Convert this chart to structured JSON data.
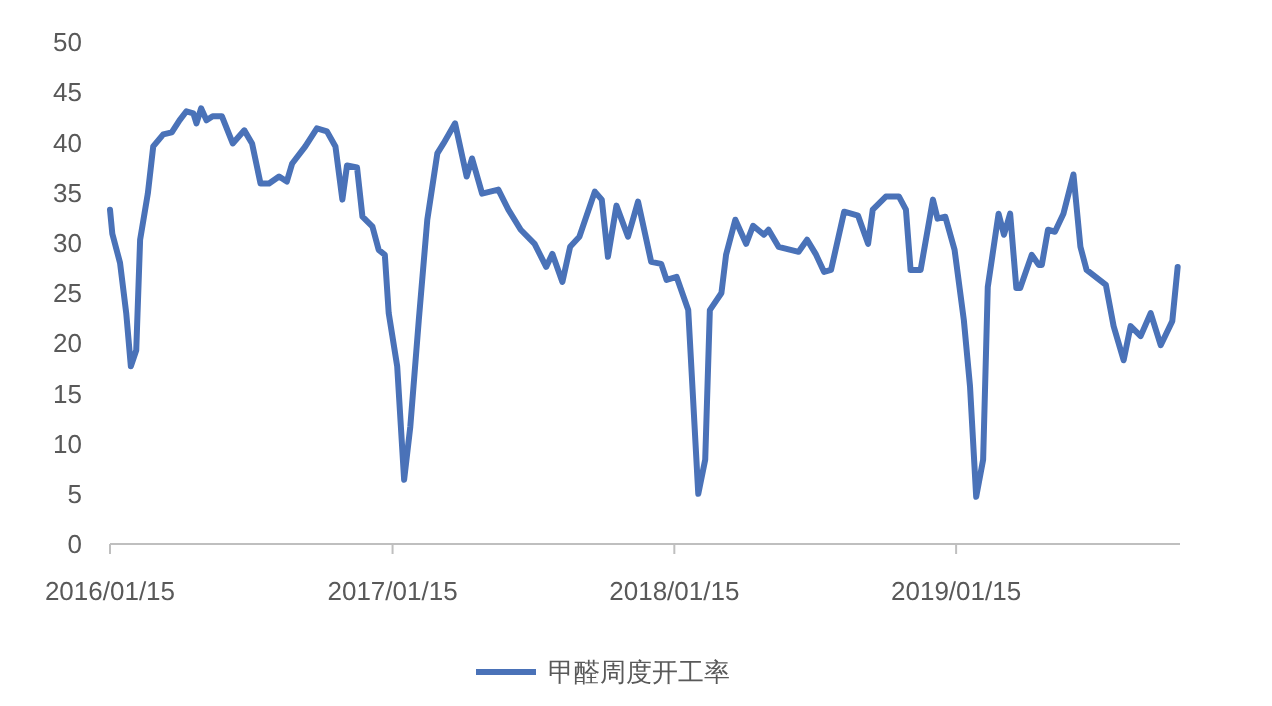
{
  "chart_data": {
    "type": "line",
    "ylim": [
      0,
      50
    ],
    "yticks": [
      0,
      5,
      10,
      15,
      20,
      25,
      30,
      35,
      40,
      45,
      50
    ],
    "xlim": [
      "2016-01-15",
      "2019-11-01"
    ],
    "xticks": [
      {
        "value": "2016-01-15",
        "label": "2016/01/15"
      },
      {
        "value": "2017-01-15",
        "label": "2017/01/15"
      },
      {
        "value": "2018-01-15",
        "label": "2018/01/15"
      },
      {
        "value": "2019-01-15",
        "label": "2019/01/15"
      }
    ],
    "grid": false,
    "legend": "bottom",
    "marker": "none",
    "line_style": "solid",
    "x": [
      "2016-01-15",
      "2016-01-18",
      "2016-01-28",
      "2016-02-05",
      "2016-02-11",
      "2016-02-18",
      "2016-02-23",
      "2016-03-04",
      "2016-03-11",
      "2016-03-24",
      "2016-04-04",
      "2016-04-14",
      "2016-04-23",
      "2016-05-02",
      "2016-05-06",
      "2016-05-12",
      "2016-05-19",
      "2016-05-27",
      "2016-06-08",
      "2016-06-22",
      "2016-07-07",
      "2016-07-17",
      "2016-07-28",
      "2016-08-08",
      "2016-08-21",
      "2016-08-31",
      "2016-09-07",
      "2016-09-24",
      "2016-10-09",
      "2016-10-22",
      "2016-11-02",
      "2016-11-11",
      "2016-11-17",
      "2016-11-30",
      "2016-12-07",
      "2016-12-20",
      "2016-12-28",
      "2017-01-05",
      "2017-01-10",
      "2017-01-21",
      "2017-01-30",
      "2017-02-07",
      "2017-02-18",
      "2017-03-01",
      "2017-03-14",
      "2017-03-22",
      "2017-04-06",
      "2017-04-21",
      "2017-04-28",
      "2017-05-11",
      "2017-06-01",
      "2017-06-14",
      "2017-06-30",
      "2017-07-18",
      "2017-08-02",
      "2017-08-10",
      "2017-08-23",
      "2017-09-02",
      "2017-09-14",
      "2017-10-04",
      "2017-10-13",
      "2017-10-21",
      "2017-11-01",
      "2017-11-16",
      "2017-11-29",
      "2017-12-16",
      "2017-12-29",
      "2018-01-05",
      "2018-01-18",
      "2018-02-02",
      "2018-02-15",
      "2018-02-24",
      "2018-03-02",
      "2018-03-17",
      "2018-03-23",
      "2018-04-04",
      "2018-04-18",
      "2018-04-27",
      "2018-05-11",
      "2018-05-17",
      "2018-05-30",
      "2018-06-25",
      "2018-07-06",
      "2018-07-17",
      "2018-07-28",
      "2018-08-06",
      "2018-08-23",
      "2018-09-10",
      "2018-09-23",
      "2018-09-29",
      "2018-10-16",
      "2018-11-02",
      "2018-11-11",
      "2018-11-17",
      "2018-11-30",
      "2018-12-16",
      "2018-12-22",
      "2019-01-01",
      "2019-01-13",
      "2019-01-25",
      "2019-02-02",
      "2019-02-10",
      "2019-02-19",
      "2019-02-25",
      "2019-03-11",
      "2019-03-18",
      "2019-03-26",
      "2019-04-03",
      "2019-04-08",
      "2019-04-23",
      "2019-05-02",
      "2019-05-06",
      "2019-05-14",
      "2019-05-23",
      "2019-06-03",
      "2019-06-16",
      "2019-06-25",
      "2019-07-03",
      "2019-07-28",
      "2019-08-07",
      "2019-08-20",
      "2019-08-29",
      "2019-09-11",
      "2019-09-24",
      "2019-10-07",
      "2019-10-22",
      "2019-10-29"
    ],
    "series": [
      {
        "name": "甲醛周度开工率",
        "color": "#4a72b8",
        "values": [
          33.3,
          30.9,
          28,
          23,
          17.7,
          19.3,
          30.3,
          34.9,
          39.6,
          40.8,
          41,
          42.2,
          43.1,
          42.9,
          41.9,
          43.4,
          42.2,
          42.6,
          42.6,
          39.9,
          41.2,
          39.9,
          35.9,
          35.9,
          36.6,
          36.1,
          37.9,
          39.6,
          41.4,
          41.1,
          39.6,
          34.3,
          37.7,
          37.5,
          32.6,
          31.6,
          29.3,
          28.8,
          23,
          17.7,
          6.4,
          11.7,
          22.3,
          32.3,
          38.9,
          39.9,
          41.9,
          36.6,
          38.4,
          34.9,
          35.3,
          33.3,
          31.3,
          29.9,
          27.6,
          28.9,
          26.1,
          29.6,
          30.6,
          35.1,
          34.3,
          28.6,
          33.7,
          30.6,
          34.1,
          28.1,
          27.9,
          26.3,
          26.6,
          23.3,
          5,
          8.4,
          23.3,
          25,
          28.8,
          32.3,
          29.9,
          31.7,
          30.8,
          31.3,
          29.6,
          29.1,
          30.3,
          28.9,
          27.1,
          27.3,
          33.1,
          32.7,
          29.9,
          33.3,
          34.6,
          34.6,
          33.3,
          27.3,
          27.3,
          34.3,
          32.4,
          32.6,
          29.3,
          22.3,
          15.7,
          4.7,
          8.4,
          25.6,
          32.9,
          30.8,
          32.9,
          25.5,
          25.5,
          28.8,
          27.8,
          27.8,
          31.3,
          31.1,
          32.9,
          36.8,
          29.6,
          27.3,
          25.8,
          21.7,
          18.3,
          21.7,
          20.7,
          23,
          19.8,
          22.2,
          27.6
        ]
      }
    ]
  }
}
